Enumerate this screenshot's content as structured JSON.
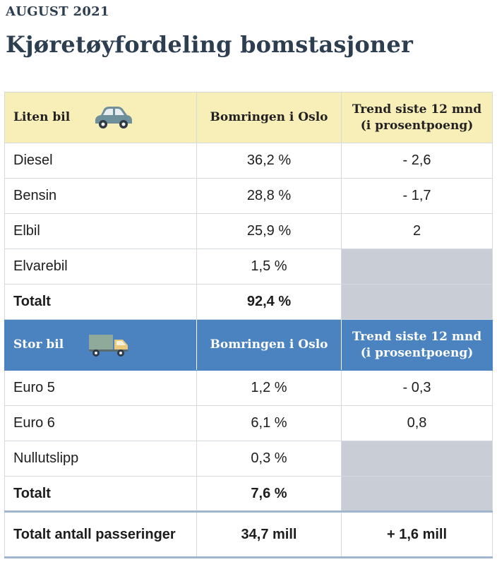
{
  "kicker": "AUGUST 2021",
  "title": "Kjøretøyfordeling bomstasjoner",
  "small_car": {
    "header": {
      "category": "Liten bil",
      "icon": "car-icon",
      "col2": "Bomringen i Oslo",
      "col3_line1": "Trend siste 12 mnd",
      "col3_line2": "(i prosentpoeng)"
    },
    "rows": [
      {
        "label": "Diesel",
        "share": "36,2 %",
        "trend": "- 2,6"
      },
      {
        "label": "Bensin",
        "share": "28,8 %",
        "trend": "- 1,7"
      },
      {
        "label": "Elbil",
        "share": "25,9 %",
        "trend": "2"
      },
      {
        "label": "Elvarebil",
        "share": "1,5 %",
        "trend": ""
      }
    ],
    "total": {
      "label": "Totalt",
      "share": "92,4 %"
    }
  },
  "large_car": {
    "header": {
      "category": "Stor bil",
      "icon": "truck-icon",
      "col2": "Bomringen i Oslo",
      "col3_line1": "Trend siste 12 mnd",
      "col3_line2": "(i prosentpoeng)"
    },
    "rows": [
      {
        "label": "Euro 5",
        "share": "1,2 %",
        "trend": "- 0,3"
      },
      {
        "label": "Euro 6",
        "share": "6,1 %",
        "trend": "0,8"
      },
      {
        "label": "Nullutslipp",
        "share": "0,3 %",
        "trend": ""
      }
    ],
    "total": {
      "label": "Totalt",
      "share": "7,6 %"
    }
  },
  "summary": {
    "label": "Totalt antall passeringer",
    "value": "34,7 mill",
    "trend": "+ 1,6 mill"
  },
  "colors": {
    "small_header_bg": "#f8eeb8",
    "large_header_bg": "#4a83c0",
    "empty_cell": "#c9ced6",
    "title": "#2c3e50"
  }
}
